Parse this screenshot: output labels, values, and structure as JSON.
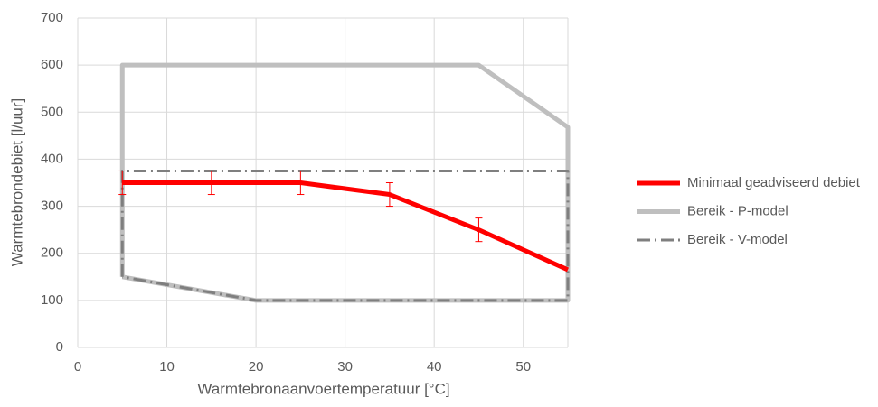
{
  "chart_data": {
    "type": "line",
    "x_label": "Warmtebronaanvoertemperatuur [°C]",
    "y_label": "Warmtebrondebiet [l/uur]",
    "xlim": [
      0,
      55
    ],
    "xticks": [
      0,
      10,
      20,
      30,
      40,
      50
    ],
    "ylim": [
      0,
      700
    ],
    "yticks": [
      0,
      100,
      200,
      300,
      400,
      500,
      600,
      700
    ],
    "grid": true,
    "legend": "right",
    "series": [
      {
        "name": "Minimaal geadviseerd debiet",
        "color": "#ff0000",
        "style": "solid",
        "width": 5,
        "x": [
          5,
          15,
          25,
          35,
          45,
          55
        ],
        "values": [
          350,
          350,
          350,
          325,
          250,
          165
        ],
        "errors": [
          25,
          25,
          25,
          25,
          25,
          null
        ]
      },
      {
        "name": "Bereik - P-model",
        "color": "#bfbfbf",
        "style": "solid",
        "width": 5,
        "x": [
          5,
          5,
          45,
          55,
          55,
          20,
          5
        ],
        "values": [
          150,
          600,
          600,
          468,
          100,
          100,
          150
        ]
      },
      {
        "name": "Bereik - V-model",
        "color": "#7f7f7f",
        "style": "dashdot",
        "width": 3,
        "x": [
          5,
          5,
          55,
          55,
          20,
          5
        ],
        "values": [
          150,
          375,
          375,
          100,
          100,
          150
        ]
      }
    ]
  }
}
